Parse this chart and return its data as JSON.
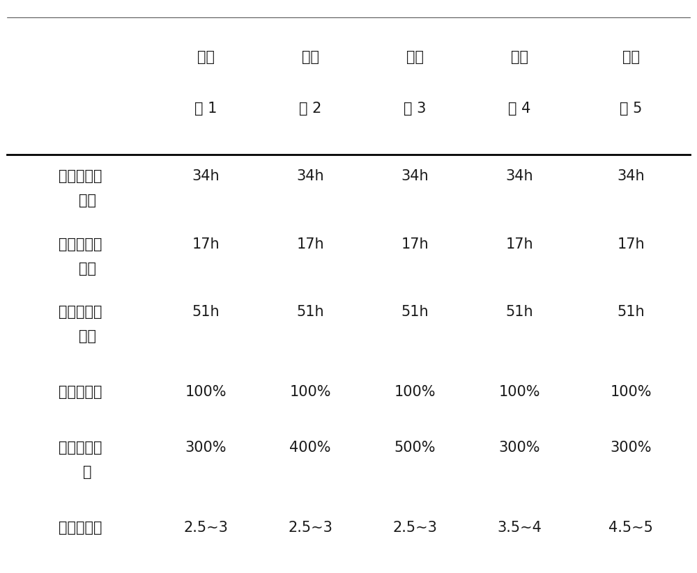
{
  "col_headers_line1": [
    "",
    "实施",
    "实施",
    "实施",
    "实施",
    "实施"
  ],
  "col_headers_line2": [
    "",
    "例 1",
    "例 2",
    "例 3",
    "例 4",
    "例 5"
  ],
  "rows": [
    {
      "label_line1": "厌氧池停留",
      "label_line2": "时间",
      "values": [
        "34h",
        "34h",
        "34h",
        "34h",
        "34h"
      ]
    },
    {
      "label_line1": "缺氧池停留",
      "label_line2": "时间",
      "values": [
        "17h",
        "17h",
        "17h",
        "17h",
        "17h"
      ]
    },
    {
      "label_line1": "好氧池停留",
      "label_line2": "时间",
      "values": [
        "51h",
        "51h",
        "51h",
        "51h",
        "51h"
      ]
    },
    {
      "label_line1": "污泥回流比",
      "label_line2": "",
      "values": [
        "100%",
        "100%",
        "100%",
        "100%",
        "100%"
      ]
    },
    {
      "label_line1": "硝化液回流",
      "label_line2": "比",
      "values": [
        "300%",
        "400%",
        "500%",
        "300%",
        "300%"
      ]
    },
    {
      "label_line1": "好氧池曝气",
      "label_line2": "",
      "values": [
        "2.5~3",
        "2.5~3",
        "2.5~3",
        "3.5~4",
        "4.5~5"
      ]
    }
  ],
  "bg_color": "#ffffff",
  "text_color": "#1a1a1a",
  "font_size": 15,
  "header_font_size": 15
}
